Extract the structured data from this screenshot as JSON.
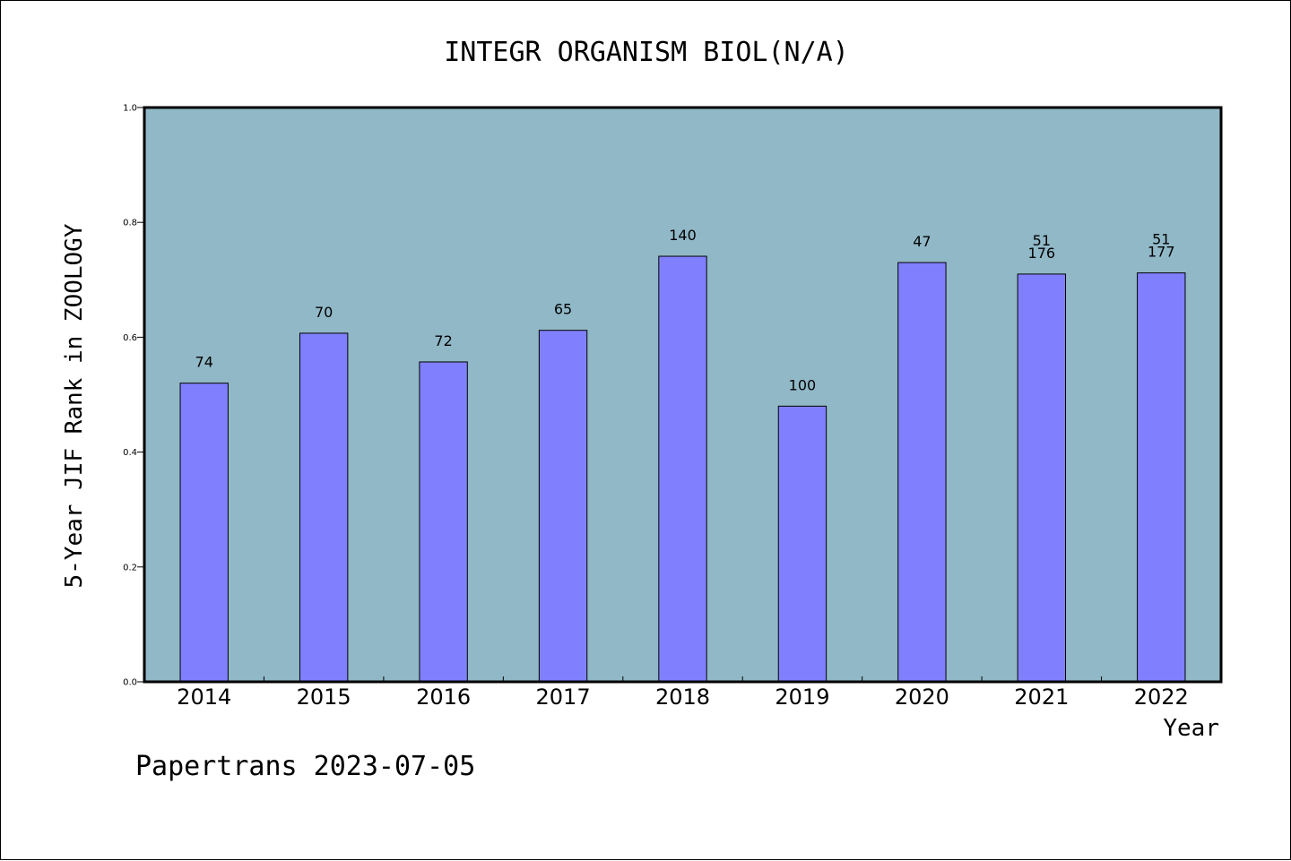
{
  "chart_data": {
    "type": "bar",
    "title": "INTEGR ORGANISM BIOL(N/A)",
    "xlabel": "Year",
    "ylabel": "5-Year JIF Rank in ZOOLOGY",
    "categories": [
      "2014",
      "2015",
      "2016",
      "2017",
      "2018",
      "2019",
      "2020",
      "2021",
      "2022"
    ],
    "values": [
      0.52,
      0.607,
      0.557,
      0.612,
      0.741,
      0.48,
      0.73,
      0.71,
      0.712
    ],
    "bar_labels": [
      [
        "74"
      ],
      [
        "70"
      ],
      [
        "72"
      ],
      [
        "65"
      ],
      [
        "140"
      ],
      [
        "100"
      ],
      [
        "47"
      ],
      [
        "51",
        "176"
      ],
      [
        "51",
        "177"
      ]
    ],
    "ylim": [
      0,
      1.0
    ],
    "yticks": [
      "0.0",
      "0.2",
      "0.4",
      "0.6",
      "0.8",
      "1.0"
    ],
    "grid": false,
    "colors": {
      "plot_background": "#90b8c7",
      "bar_fill": "#8080ff",
      "bar_stroke": "#000000",
      "axis": "#000000"
    }
  },
  "footer": {
    "text": "Papertrans 2023-07-05"
  }
}
